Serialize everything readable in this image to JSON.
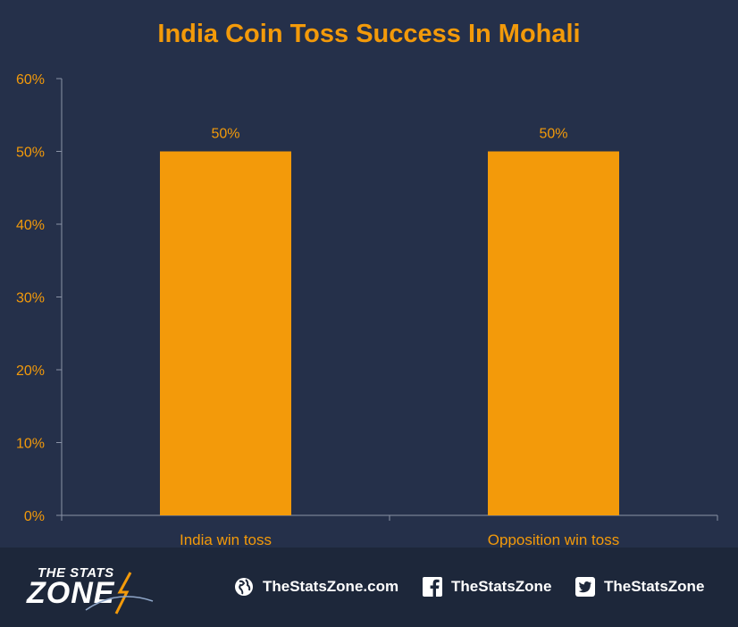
{
  "chart_data": {
    "type": "bar",
    "title": "India Coin Toss Success In Mohali",
    "categories": [
      "India win toss",
      "Opposition win toss"
    ],
    "values": [
      50,
      50
    ],
    "data_labels": [
      "50%",
      "50%"
    ],
    "ylim": [
      0,
      60
    ],
    "y_ticks": [
      "0%",
      "10%",
      "20%",
      "30%",
      "40%",
      "50%",
      "60%"
    ],
    "y_tick_values": [
      0,
      10,
      20,
      30,
      40,
      50,
      60
    ],
    "grid": false,
    "legend": "none",
    "bar_color": "#f39a0a",
    "text_color": "#f39a0a",
    "background_color": "#25304a"
  },
  "footer": {
    "logo_top": "THE STATS",
    "logo_bottom": "ZONE",
    "website": "TheStatsZone.com",
    "website_icon": "globe-icon",
    "facebook": "TheStatsZone",
    "facebook_icon": "facebook-icon",
    "twitter": "TheStatsZone",
    "twitter_icon": "twitter-icon"
  }
}
